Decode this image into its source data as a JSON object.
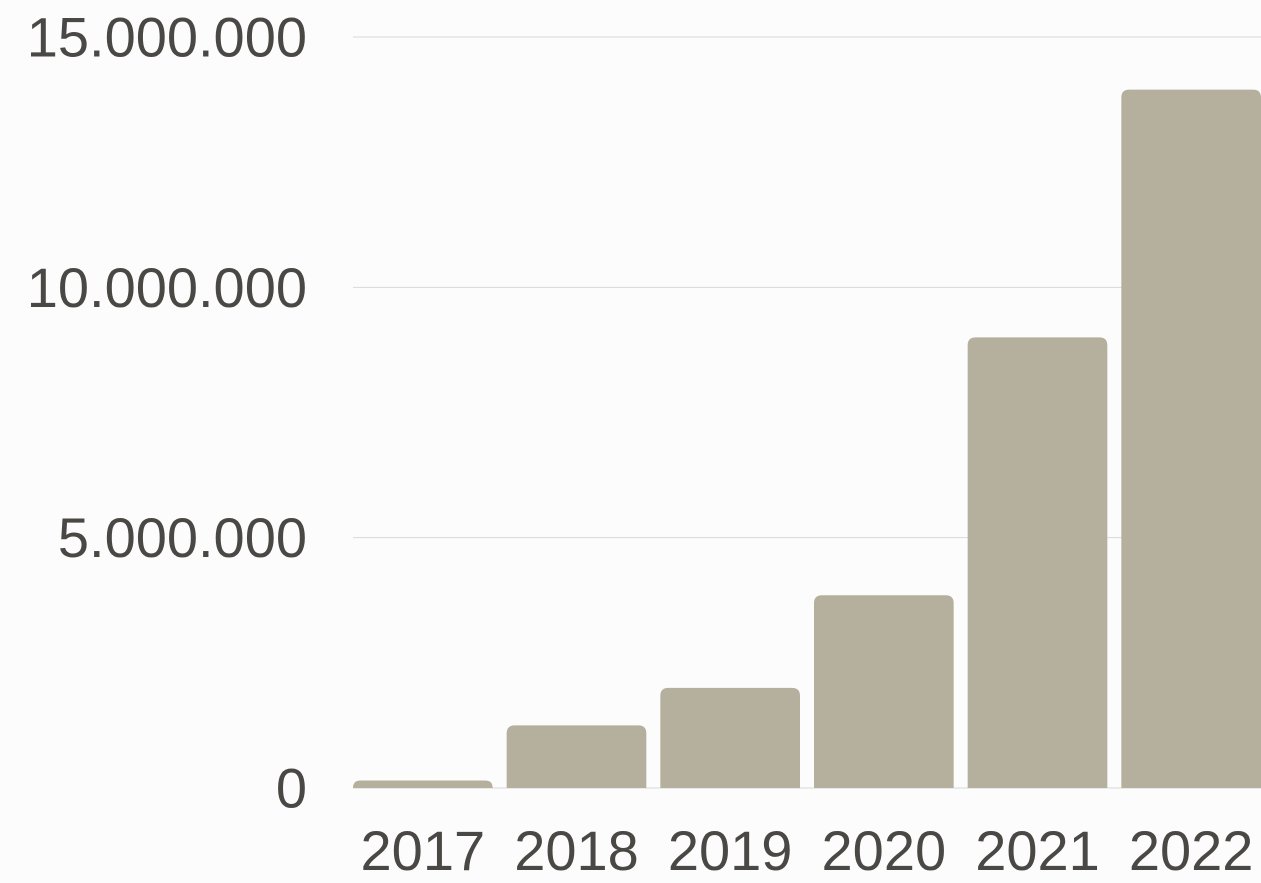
{
  "chart_data": {
    "type": "bar",
    "categories": [
      "2017",
      "2018",
      "2019",
      "2020",
      "2021",
      "2022"
    ],
    "values": [
      150000,
      1250000,
      2000000,
      3850000,
      9000000,
      13950000
    ],
    "ylim": [
      0,
      15000000
    ],
    "yticks": [
      0,
      5000000,
      10000000,
      15000000
    ],
    "ytick_labels": [
      "0",
      "5.000.000",
      "10.000.000",
      "15.000.000"
    ],
    "grid": true,
    "colors": {
      "bar": "#b5b09d",
      "grid": "#d9d9d9",
      "text": "#4a4845"
    }
  }
}
